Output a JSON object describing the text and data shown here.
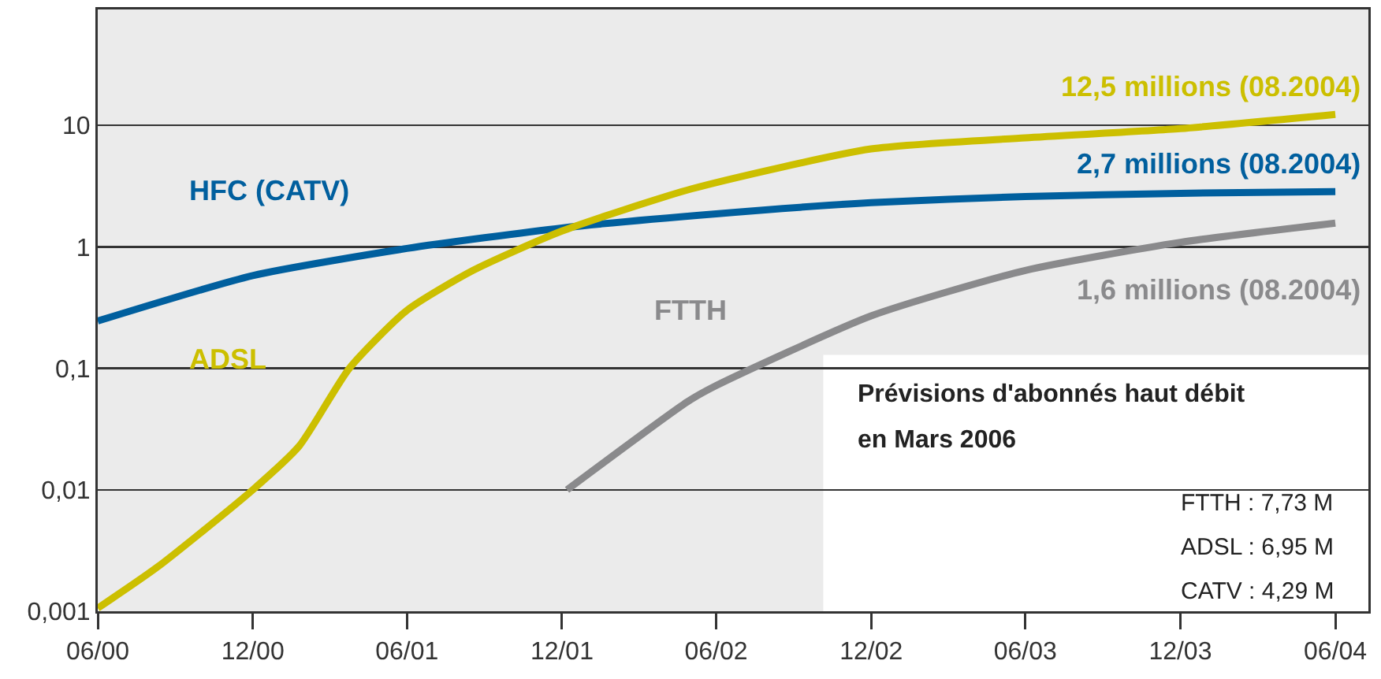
{
  "chart_data": {
    "type": "line",
    "log": "y",
    "grid": "y",
    "legend": false,
    "marker": "none",
    "line_style": "solid",
    "xlim": [
      "2000-06",
      "2004-07-10"
    ],
    "xticks": [
      {
        "value": "2000-06",
        "label": "06/00"
      },
      {
        "value": "2000-12",
        "label": "12/00"
      },
      {
        "value": "2001-06",
        "label": "06/01"
      },
      {
        "value": "2001-12",
        "label": "12/01"
      },
      {
        "value": "2002-06",
        "label": "06/02"
      },
      {
        "value": "2002-12",
        "label": "12/02"
      },
      {
        "value": "2003-06",
        "label": "06/03"
      },
      {
        "value": "2003-12",
        "label": "12/03"
      },
      {
        "value": "2004-06",
        "label": "06/04"
      }
    ],
    "ylim": [
      0.001,
      90
    ],
    "yticks": [
      {
        "value": 0.001,
        "label": "0,001"
      },
      {
        "value": 0.01,
        "label": "0,01"
      },
      {
        "value": 0.1,
        "label": "0,1"
      },
      {
        "value": 1,
        "label": "1"
      },
      {
        "value": 10,
        "label": "10"
      }
    ],
    "series": [
      {
        "name": "HFC (CATV)",
        "color": "#005f9e",
        "x": [
          "2000-06",
          "2000-12",
          "2001-06",
          "2001-12",
          "2002-06",
          "2002-12",
          "2003-06",
          "2003-12",
          "2004-06"
        ],
        "values": [
          0.245,
          0.58,
          0.97,
          1.43,
          1.87,
          2.31,
          2.6,
          2.76,
          2.85
        ]
      },
      {
        "name": "ADSL",
        "color": "#ccbf00",
        "x": [
          "2000-06",
          "2000-08-10",
          "2000-12",
          "2001-01-25",
          "2001-03-25",
          "2001-06",
          "2001-08-18",
          "2001-12",
          "2002-05-03",
          "2002-12",
          "2003-06",
          "2003-12",
          "2004-06"
        ],
        "values": [
          0.00106,
          0.0023,
          0.01,
          0.023,
          0.1,
          0.3,
          0.64,
          1.35,
          3.0,
          6.4,
          7.9,
          9.4,
          12.3
        ]
      },
      {
        "name": "FTTH",
        "color": "#8a8a8c",
        "x": [
          "2001-12-07",
          "2002-04-28",
          "2002-06",
          "2002-12",
          "2003-06",
          "2003-12",
          "2004-06"
        ],
        "values": [
          0.01,
          0.053,
          0.072,
          0.27,
          0.64,
          1.09,
          1.57
        ]
      }
    ],
    "annotations": [
      {
        "text": "12,5 millions (08.2004)",
        "x": "2004-06",
        "y": 12.3
      },
      {
        "text": "2,7 millions (08.2004)",
        "x": "2004-06",
        "y": 2.85
      },
      {
        "text": "1,6 millions (08.2004)",
        "x": "2004-06",
        "y": 1.57
      },
      "Prévisions d'abonnés haut débit",
      "en Mars 2006",
      "FTTH : 7,73 M",
      "ADSL : 6,95 M",
      "CATV : 4,29 M"
    ]
  }
}
